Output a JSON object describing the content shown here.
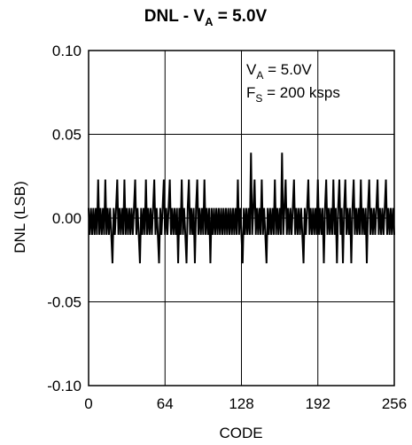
{
  "chart_data": {
    "type": "line",
    "title": {
      "main": "DNL - V",
      "sub": "A",
      "tail": " = 5.0V"
    },
    "xlabel": "CODE",
    "ylabel": "DNL (LSB)",
    "xlim": [
      0,
      256
    ],
    "ylim": [
      -0.1,
      0.1
    ],
    "x_ticks": [
      0,
      64,
      128,
      192,
      256
    ],
    "x_tick_labels": [
      "0",
      "64",
      "128",
      "192",
      "256"
    ],
    "y_ticks": [
      0.1,
      0.05,
      0.0,
      -0.05,
      -0.1
    ],
    "y_tick_labels": [
      "0.10",
      "0.05",
      "0.00",
      "-0.05",
      "-0.10"
    ],
    "grid": true,
    "annotations": [
      {
        "main": "V",
        "sub": "A",
        "tail": " = 5.0V"
      },
      {
        "main": "F",
        "sub": "S",
        "tail": " = 200 ksps"
      }
    ],
    "series": [
      {
        "x_start": 0,
        "x_step": 1,
        "line_color": "#000000",
        "values": [
          0.006,
          -0.01,
          0.006,
          -0.01,
          0.006,
          -0.01,
          0.006,
          -0.01,
          0.023,
          -0.01,
          0.006,
          -0.01,
          0.006,
          -0.01,
          0.023,
          -0.01,
          0.006,
          -0.01,
          0.006,
          -0.01,
          -0.027,
          0.006,
          -0.01,
          0.006,
          0.023,
          -0.01,
          0.006,
          -0.01,
          0.006,
          -0.01,
          0.023,
          -0.01,
          0.006,
          -0.01,
          0.006,
          -0.01,
          0.006,
          -0.01,
          0.006,
          0.023,
          -0.01,
          0.006,
          -0.01,
          -0.027,
          0.006,
          -0.01,
          0.006,
          -0.01,
          0.023,
          -0.01,
          0.006,
          -0.01,
          0.006,
          -0.01,
          0.006,
          0.023,
          -0.01,
          0.006,
          -0.01,
          -0.027,
          0.006,
          -0.01,
          0.006,
          0.023,
          -0.01,
          0.006,
          -0.01,
          0.006,
          0.023,
          -0.01,
          0.006,
          -0.01,
          0.006,
          -0.01,
          0.006,
          -0.027,
          0.006,
          -0.01,
          0.023,
          -0.01,
          0.006,
          -0.01,
          -0.027,
          0.006,
          0.023,
          -0.01,
          0.006,
          -0.01,
          0.006,
          -0.027,
          0.006,
          0.023,
          -0.01,
          0.006,
          -0.01,
          0.006,
          -0.01,
          0.023,
          -0.01,
          0.006,
          -0.01,
          0.006,
          -0.027,
          0.006,
          -0.01,
          0.006,
          -0.01,
          0.006,
          -0.01,
          0.006,
          -0.01,
          0.006,
          -0.01,
          0.006,
          -0.01,
          0.006,
          -0.01,
          0.006,
          -0.01,
          0.006,
          -0.01,
          0.006,
          -0.01,
          0.006,
          -0.01,
          0.023,
          -0.01,
          0.006,
          -0.01,
          -0.027,
          0.006,
          -0.01,
          0.006,
          -0.01,
          0.006,
          -0.01,
          0.039,
          -0.01,
          0.006,
          0.023,
          -0.01,
          0.006,
          -0.01,
          0.006,
          -0.01,
          0.023,
          -0.01,
          0.006,
          -0.01,
          -0.027,
          0.006,
          -0.01,
          0.006,
          -0.01,
          0.006,
          -0.01,
          0.023,
          -0.01,
          0.006,
          -0.01,
          0.006,
          -0.01,
          0.039,
          -0.01,
          0.006,
          0.023,
          -0.01,
          0.006,
          -0.01,
          0.006,
          -0.01,
          0.006,
          0.023,
          -0.01,
          0.006,
          -0.01,
          0.006,
          -0.01,
          0.006,
          -0.01,
          -0.027,
          0.006,
          -0.01,
          0.006,
          0.023,
          -0.01,
          0.006,
          -0.01,
          0.006,
          -0.01,
          0.006,
          -0.01,
          0.023,
          -0.01,
          0.006,
          -0.01,
          0.006,
          -0.027,
          0.006,
          0.023,
          -0.01,
          0.006,
          -0.01,
          0.006,
          -0.01,
          0.023,
          -0.01,
          0.006,
          -0.027,
          0.006,
          0.023,
          -0.01,
          0.006,
          -0.027,
          0.006,
          0.023,
          -0.01,
          0.006,
          -0.01,
          0.006,
          -0.027,
          0.006,
          0.023,
          -0.01,
          0.006,
          -0.01,
          0.006,
          -0.01,
          0.023,
          -0.01,
          0.006,
          -0.01,
          0.006,
          -0.027,
          0.006,
          0.023,
          -0.01,
          0.006,
          -0.01,
          0.006,
          -0.01,
          0.006,
          0.023,
          -0.01,
          0.006,
          -0.01,
          0.006,
          -0.01,
          0.006,
          0.023,
          -0.01,
          0.006,
          -0.01,
          0.006,
          -0.01,
          0.006,
          -0.01
        ]
      }
    ]
  }
}
